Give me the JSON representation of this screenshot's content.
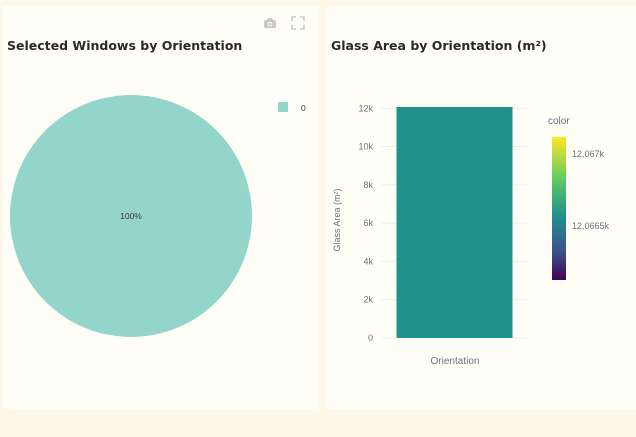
{
  "colors": {
    "pie_slice": "#93d5ca",
    "bar": "#21918c",
    "grid": "#ececec",
    "panel": "#fffef6",
    "page": "#fdf8ea"
  },
  "toolbar": {
    "icons": [
      "camera-icon",
      "fullscreen-icon"
    ]
  },
  "chart_data": [
    {
      "type": "pie",
      "title": "Selected Windows by Orientation",
      "labels": [
        "0"
      ],
      "values": [
        100
      ],
      "slice_labels": [
        "100%"
      ],
      "legend": {
        "entries": [
          "0"
        ],
        "placement": "top-right"
      }
    },
    {
      "type": "bar",
      "title": "Glass Area by Orientation (m²)",
      "categories": [
        "Orientation"
      ],
      "values": [
        12066.6
      ],
      "xlabel": "Orientation",
      "ylabel": "Glass Area (m²)",
      "ylim": [
        0,
        12066.6
      ],
      "yticks": [
        0,
        2000,
        4000,
        6000,
        8000,
        10000,
        12000
      ],
      "ytick_labels": [
        "0",
        "2k",
        "4k",
        "6k",
        "8k",
        "10k",
        "12k"
      ],
      "grid": true,
      "colorbar": {
        "title": "color",
        "colorscale": "viridis",
        "tick_labels": [
          "12.067k",
          "12.0665k"
        ]
      }
    }
  ]
}
